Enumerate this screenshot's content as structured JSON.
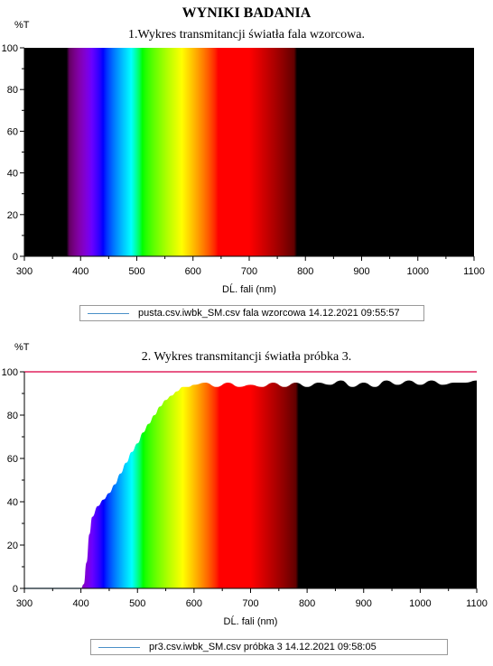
{
  "report": {
    "title": "WYNIKI BADANIA"
  },
  "chart_data": [
    {
      "type": "area",
      "title": "1.Wykres transmitancji światła fala wzorcowa.",
      "ylabel": "%T",
      "xlabel": "DĹ. fali (nm)",
      "xlim": [
        300,
        1100
      ],
      "ylim": [
        0,
        100
      ],
      "x_ticks": [
        300,
        400,
        500,
        600,
        700,
        800,
        900,
        1000,
        1100
      ],
      "y_ticks": [
        0,
        20,
        40,
        60,
        80,
        100
      ],
      "grid": false,
      "legend": {
        "position": "bottom",
        "text": "pusta.csv.iwbk_SM.csv  fala wzorcowa  14.12.2021 09:55:57"
      },
      "reference_line": null,
      "series": [
        {
          "x": [
            300,
            400,
            500,
            600,
            700,
            800,
            900,
            1000,
            1100
          ],
          "values": [
            100,
            100,
            100,
            100,
            100,
            100,
            100,
            100,
            100
          ]
        }
      ]
    },
    {
      "type": "area",
      "title": "2. Wykres transmitancji światła próbka 3.",
      "ylabel": "%T",
      "xlabel": "DĹ. fali (nm)",
      "xlim": [
        300,
        1100
      ],
      "ylim": [
        0,
        100
      ],
      "x_ticks": [
        300,
        400,
        500,
        600,
        700,
        800,
        900,
        1000,
        1100
      ],
      "y_ticks": [
        0,
        20,
        40,
        60,
        80,
        100
      ],
      "grid": false,
      "legend": {
        "position": "bottom",
        "text": "pr3.csv.iwbk_SM.csv  próbka 3 14.12.2021 09:58:05"
      },
      "reference_line": 100,
      "series": [
        {
          "x": [
            300,
            400,
            405,
            410,
            415,
            420,
            430,
            440,
            450,
            460,
            470,
            480,
            490,
            500,
            510,
            520,
            530,
            540,
            550,
            560,
            570,
            580,
            590,
            600,
            620,
            640,
            660,
            680,
            700,
            720,
            740,
            760,
            780,
            800,
            820,
            840,
            860,
            880,
            900,
            920,
            940,
            960,
            980,
            1000,
            1020,
            1040,
            1060,
            1080,
            1100
          ],
          "values": [
            0,
            0,
            2,
            12,
            25,
            33,
            38,
            41,
            44,
            48,
            53,
            58,
            63,
            67,
            72,
            76,
            80,
            84,
            87,
            89,
            91,
            93,
            93,
            94,
            95,
            93,
            95,
            93,
            94,
            93,
            95,
            93,
            95,
            93,
            95,
            94,
            96,
            93,
            95,
            93,
            96,
            94,
            96,
            94,
            96,
            94,
            95,
            95,
            96
          ]
        }
      ]
    }
  ]
}
